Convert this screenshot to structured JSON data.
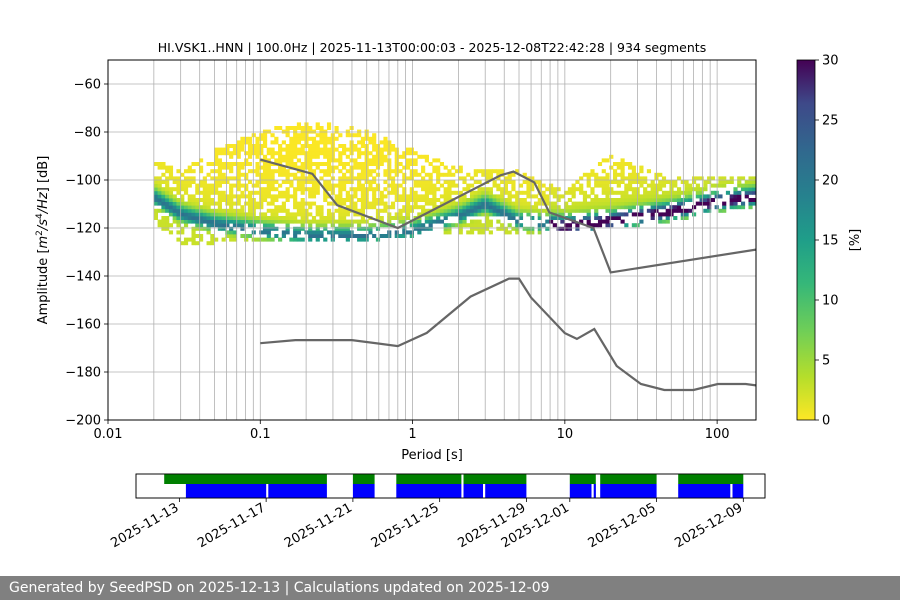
{
  "chart_data": {
    "type": "heatmap",
    "title": "HI.VSK1..HNN | 100.0Hz | 2025-11-13T00:00:03 - 2025-12-08T22:42:28 | 934 segments",
    "xlabel": "Period [s]",
    "ylabel": "Amplitude [m²/s⁴/Hz] [dB]",
    "ylabel_parts": {
      "pre": "Amplitude [",
      "m": "m",
      "two": "2",
      "s": "/s",
      "four": "4",
      "hz": "/Hz",
      "post": "] [dB]"
    },
    "xscale": "log",
    "xlim": [
      0.01,
      180
    ],
    "ylim": [
      -200,
      -50
    ],
    "x_ticks": [
      {
        "value": 0.01,
        "label": "0.01"
      },
      {
        "value": 0.1,
        "label": "0.1"
      },
      {
        "value": 1,
        "label": "1"
      },
      {
        "value": 10,
        "label": "10"
      },
      {
        "value": 100,
        "label": "100"
      }
    ],
    "y_ticks": [
      -60,
      -80,
      -100,
      -120,
      -140,
      -160,
      -180,
      -200
    ],
    "grid": true,
    "colorbar": {
      "label": "[%]",
      "min": 0,
      "max": 30,
      "ticks": [
        0,
        5,
        10,
        15,
        20,
        25,
        30
      ],
      "colormap": "viridis_r"
    },
    "density_ridge": {
      "period": [
        0.02,
        0.03,
        0.05,
        0.1,
        0.2,
        0.5,
        1,
        2,
        3,
        5,
        10,
        20,
        50,
        100,
        180
      ],
      "median_db": [
        -108,
        -115,
        -119,
        -122,
        -124,
        -124,
        -122,
        -116,
        -111,
        -118,
        -120,
        -118,
        -114,
        -110,
        -108
      ],
      "lower_db": [
        -118,
        -127,
        -127,
        -126,
        -126,
        -126,
        -124,
        -123,
        -123,
        -123,
        -122,
        -121,
        -118,
        -114,
        -112
      ],
      "upper_db": [
        -92,
        -97,
        -88,
        -80,
        -76,
        -80,
        -88,
        -95,
        -97,
        -97,
        -105,
        -90,
        -100,
        -100,
        -100
      ]
    },
    "noise_models": [
      {
        "name": "NHNM",
        "color": "#666666",
        "period": [
          0.1,
          0.22,
          0.32,
          0.8,
          3.8,
          4.6,
          6.3,
          7.9,
          15.4,
          20.0,
          180
        ],
        "db": [
          -91.5,
          -97.4,
          -110.5,
          -120.0,
          -98.0,
          -96.5,
          -101.0,
          -113.5,
          -120.0,
          -138.5,
          -129.0
        ]
      },
      {
        "name": "NLNM",
        "color": "#666666",
        "period": [
          0.1,
          0.17,
          0.4,
          0.8,
          1.24,
          2.4,
          4.3,
          5.0,
          6.0,
          10.0,
          12.0,
          15.6,
          21.9,
          31.6,
          45.0,
          70.0,
          101.0,
          154.0,
          180
        ],
        "db": [
          -168.0,
          -166.7,
          -166.7,
          -169.2,
          -163.7,
          -148.6,
          -141.1,
          -141.1,
          -149.0,
          -163.8,
          -166.2,
          -162.1,
          -177.5,
          -185.0,
          -187.5,
          -187.5,
          -185.0,
          -185.0,
          -185.6
        ]
      }
    ],
    "timeline": {
      "x_ticks": [
        "2025-11-13",
        "2025-11-17",
        "2025-11-21",
        "2025-11-25",
        "2025-11-29",
        "2025-12-01",
        "2025-12-05",
        "2025-12-09"
      ],
      "start": "2025-11-11",
      "end": "2025-12-10",
      "green_segments": [
        [
          "2025-11-12.3",
          "2025-11-19.8"
        ],
        [
          "2025-11-21.0",
          "2025-11-22.0"
        ],
        [
          "2025-11-23.0",
          "2025-11-26.0"
        ],
        [
          "2025-11-26.1",
          "2025-11-29.0"
        ],
        [
          "2025-12-01.0",
          "2025-12-02.2"
        ],
        [
          "2025-12-02.4",
          "2025-12-05.0"
        ],
        [
          "2025-12-06.0",
          "2025-12-09.0"
        ]
      ],
      "blue_segments": [
        [
          "2025-11-13.3",
          "2025-11-17.0"
        ],
        [
          "2025-11-17.1",
          "2025-11-19.8"
        ],
        [
          "2025-11-21.0",
          "2025-11-22.0"
        ],
        [
          "2025-11-23.0",
          "2025-11-26.0"
        ],
        [
          "2025-11-26.1",
          "2025-11-27.0"
        ],
        [
          "2025-11-27.1",
          "2025-11-29.0"
        ],
        [
          "2025-12-01.0",
          "2025-12-02.0"
        ],
        [
          "2025-12-02.1",
          "2025-12-02.2"
        ],
        [
          "2025-12-02.4",
          "2025-12-05.0"
        ],
        [
          "2025-12-06.0",
          "2025-12-08.4"
        ],
        [
          "2025-12-08.5",
          "2025-12-09.0"
        ]
      ],
      "colors": {
        "green": "#008000",
        "blue": "#0000ff"
      }
    }
  },
  "footer": {
    "text": "Generated by SeedPSD on 2025-12-13 | Calculations updated on 2025-12-09"
  }
}
